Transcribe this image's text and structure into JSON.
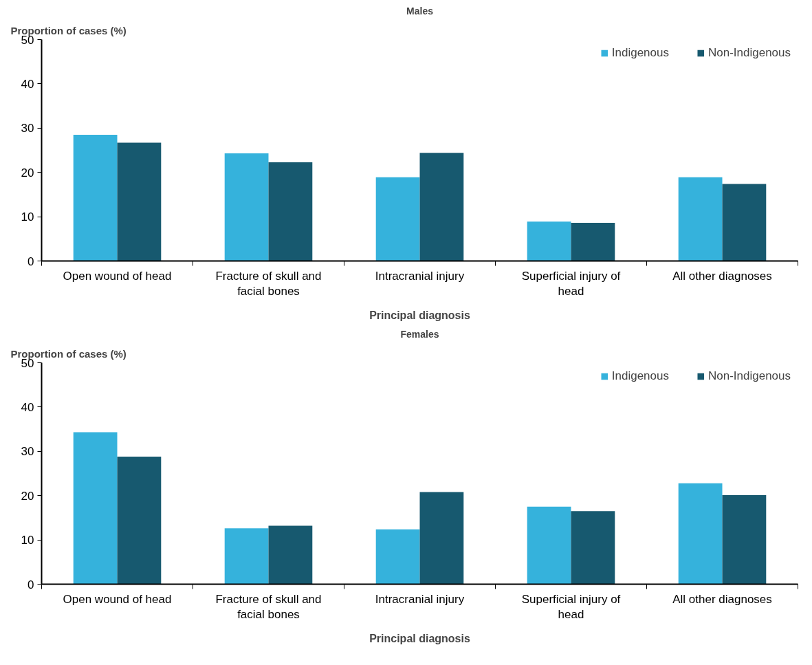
{
  "chart_data": [
    {
      "type": "bar",
      "title": "Males",
      "xlabel": "Principal diagnosis",
      "ylabel": "Proportion of cases (%)",
      "categories": [
        "Open wound of head",
        "Fracture of skull and facial bones",
        "Intracranial injury",
        "Superficial injury of head",
        "All other diagnoses"
      ],
      "ylim": [
        0,
        50
      ],
      "yticks": [
        0,
        10,
        20,
        30,
        40,
        50
      ],
      "legend": "top right",
      "series": [
        {
          "name": "Indigenous",
          "color": "#35b2dc",
          "values": [
            28.5,
            24.3,
            18.9,
            8.9,
            18.9
          ]
        },
        {
          "name": "Non-Indigenous",
          "color": "#17596f",
          "values": [
            26.7,
            22.3,
            24.4,
            8.6,
            17.4
          ]
        }
      ]
    },
    {
      "type": "bar",
      "title": "Females",
      "xlabel": "Principal diagnosis",
      "ylabel": "Proportion of cases (%)",
      "categories": [
        "Open wound of head",
        "Fracture of skull and facial bones",
        "Intracranial injury",
        "Superficial injury of head",
        "All other diagnoses"
      ],
      "ylim": [
        0,
        50
      ],
      "yticks": [
        0,
        10,
        20,
        30,
        40,
        50
      ],
      "legend": "top right",
      "series": [
        {
          "name": "Indigenous",
          "color": "#35b2dc",
          "values": [
            34.3,
            12.6,
            12.4,
            17.5,
            22.8
          ]
        },
        {
          "name": "Non-Indigenous",
          "color": "#17596f",
          "values": [
            28.8,
            13.2,
            20.8,
            16.5,
            20.1
          ]
        }
      ]
    }
  ]
}
